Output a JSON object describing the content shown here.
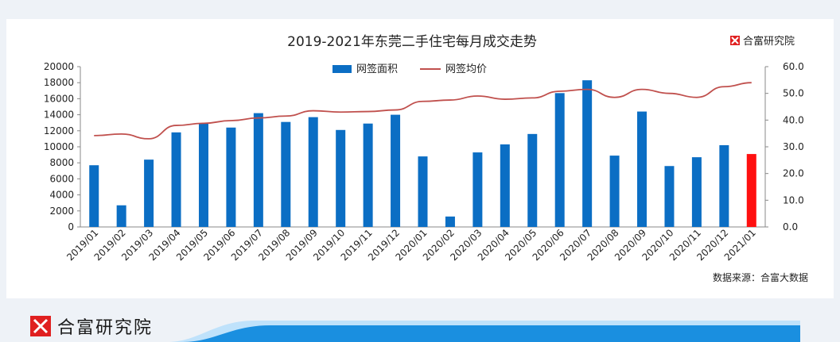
{
  "brand": {
    "name": "合富研究院",
    "logo_color": "#e02020",
    "source_note": "数据来源：合富大数据"
  },
  "colors": {
    "bar": "#0b6ec4",
    "bar_highlight": "#ff1010",
    "line": "#c0504d",
    "footer_band": "#1a8fe0"
  },
  "chart_data": {
    "type": "bar",
    "title": "2019-2021年东莞二手住宅每月成交走势",
    "categories": [
      "2019/01",
      "2019/02",
      "2019/03",
      "2019/04",
      "2019/05",
      "2019/06",
      "2019/07",
      "2019/08",
      "2019/09",
      "2019/10",
      "2019/11",
      "2019/12",
      "2020/01",
      "2020/02",
      "2020/03",
      "2020/04",
      "2020/05",
      "2020/06",
      "2020/07",
      "2020/08",
      "2020/09",
      "2020/10",
      "2020/11",
      "2020/12",
      "2021/01"
    ],
    "series": [
      {
        "name": "网签面积",
        "kind": "bar",
        "axis": "left",
        "values": [
          7700,
          2700,
          8400,
          11800,
          12900,
          12400,
          14200,
          13100,
          13700,
          12100,
          12900,
          14000,
          8800,
          1300,
          9300,
          10300,
          11600,
          16700,
          18300,
          8900,
          14400,
          7600,
          8700,
          10200,
          9100
        ],
        "highlight_index": 24
      },
      {
        "name": "网签均价",
        "kind": "line",
        "axis": "right",
        "values": [
          34.2,
          34.8,
          33.0,
          38.0,
          38.8,
          39.8,
          40.8,
          41.5,
          43.5,
          43.0,
          43.2,
          43.8,
          47.0,
          47.5,
          49.0,
          47.8,
          48.3,
          50.8,
          51.5,
          48.5,
          51.5,
          50.0,
          48.5,
          52.5,
          54.0
        ]
      }
    ],
    "ylim_left": [
      0,
      20000
    ],
    "yticks_left": [
      "0",
      "2000",
      "4000",
      "6000",
      "8000",
      "10000",
      "12000",
      "14000",
      "16000",
      "18000",
      "20000"
    ],
    "ylim_right": [
      0,
      60
    ],
    "yticks_right": [
      "0.0",
      "10.0",
      "20.0",
      "30.0",
      "40.0",
      "50.0",
      "60.0"
    ],
    "grid": false,
    "legend_position": "top-center"
  }
}
